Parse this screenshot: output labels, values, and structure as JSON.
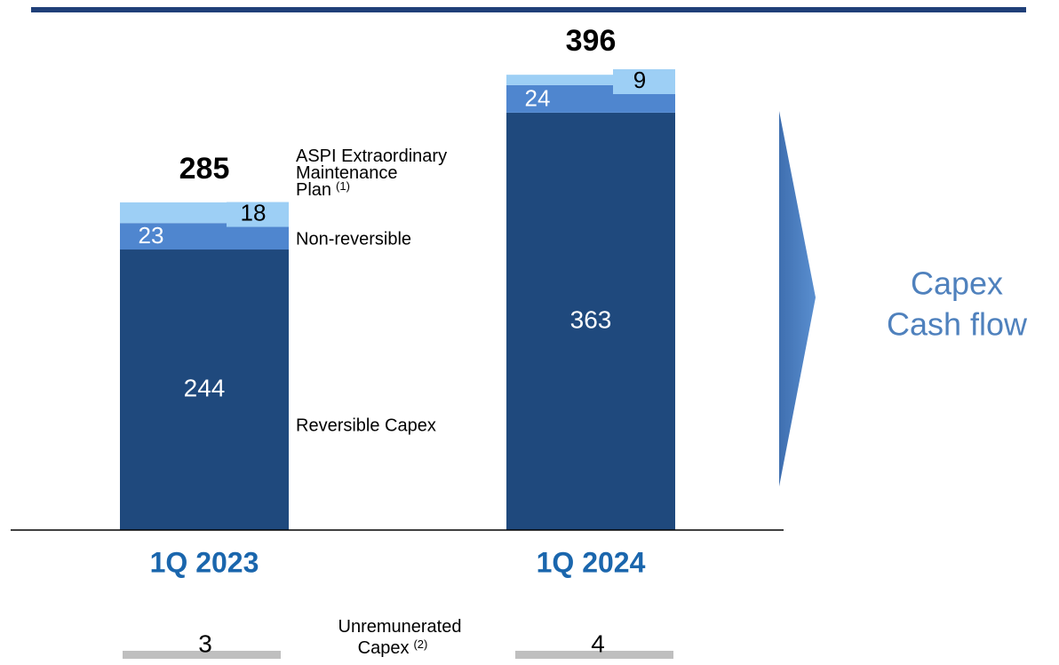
{
  "chart_data": {
    "type": "stacked_bar",
    "categories": [
      "1Q 2023",
      "1Q 2024"
    ],
    "series": [
      {
        "name": "Reversible Capex",
        "color": "#1f497d",
        "values": [
          244,
          363
        ]
      },
      {
        "name": "Non-reversible",
        "color": "#4f86cf",
        "values": [
          23,
          24
        ]
      },
      {
        "name": "ASPI Extraordinary Maintenance Plan",
        "footnote": "(1)",
        "color": "#9dcff5",
        "values": [
          18,
          9
        ]
      }
    ],
    "totals": [
      285,
      396
    ],
    "unremunerated": {
      "label": "Unremunerated Capex",
      "footnote": "(2)",
      "color": "#bfbfbf",
      "values": [
        3,
        4
      ]
    },
    "annotation": [
      "Capex",
      "Cash flow"
    ]
  }
}
